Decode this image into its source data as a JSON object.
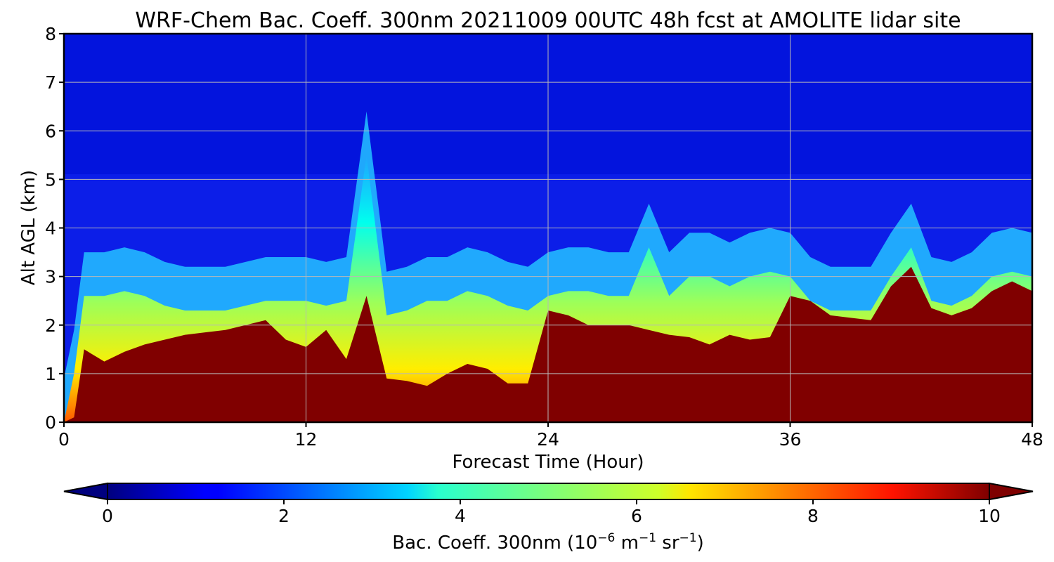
{
  "chart_data": {
    "type": "heatmap",
    "title": "WRF-Chem Bac. Coeff. 300nm  20211009 00UTC 48h fcst at AMOLITE lidar site",
    "xlabel": "Forecast Time (Hour)",
    "ylabel": "Alt AGL (km)",
    "xlim": [
      0,
      48
    ],
    "ylim": [
      0,
      8
    ],
    "xticks": [
      "0",
      "12",
      "24",
      "36",
      "48"
    ],
    "yticks": [
      "0",
      "1",
      "2",
      "3",
      "4",
      "5",
      "6",
      "7",
      "8"
    ],
    "grid": true,
    "colormap": "jet",
    "colorbar": {
      "label_main": "Bac. Coeff. 300nm  (10",
      "label_exp1": "−6",
      "label_mid": " m",
      "label_exp2": "−1",
      "label_mid2": " sr",
      "label_exp3": "−1",
      "label_end": ")",
      "range": [
        0,
        10
      ],
      "ticks": [
        "0",
        "2",
        "4",
        "6",
        "8",
        "10"
      ],
      "extend": "both",
      "placement": "bottom"
    },
    "hours": [
      0,
      0.5,
      1,
      2,
      3,
      4,
      5,
      6,
      7,
      8,
      9,
      10,
      11,
      12,
      13,
      14,
      15,
      16,
      17,
      18,
      19,
      20,
      21,
      22,
      23,
      24,
      25,
      26,
      27,
      28,
      29,
      30,
      31,
      32,
      33,
      34,
      35,
      36,
      37,
      38,
      39,
      40,
      41,
      42,
      43,
      44,
      45,
      46,
      47,
      48
    ],
    "saturation_top_km": [
      0.0,
      0.1,
      1.5,
      1.25,
      1.45,
      1.6,
      1.7,
      1.8,
      1.85,
      1.9,
      2.0,
      2.1,
      1.7,
      1.55,
      1.9,
      1.3,
      2.6,
      0.9,
      0.85,
      0.75,
      1.0,
      1.2,
      1.1,
      0.8,
      0.8,
      2.3,
      2.2,
      2.0,
      2.0,
      2.0,
      1.9,
      1.8,
      1.75,
      1.6,
      1.8,
      1.7,
      1.75,
      2.6,
      2.5,
      2.2,
      2.15,
      2.1,
      2.8,
      3.2,
      2.35,
      2.2,
      2.35,
      2.7,
      2.9,
      2.7
    ],
    "aerosol_top_km": [
      0.0,
      1.0,
      2.6,
      2.6,
      2.7,
      2.6,
      2.4,
      2.3,
      2.3,
      2.3,
      2.4,
      2.5,
      2.5,
      2.5,
      2.4,
      2.5,
      5.5,
      2.2,
      2.3,
      2.5,
      2.5,
      2.7,
      2.6,
      2.4,
      2.3,
      2.6,
      2.7,
      2.7,
      2.6,
      2.6,
      3.6,
      2.6,
      3.0,
      3.0,
      2.8,
      3.0,
      3.1,
      3.0,
      2.5,
      2.3,
      2.3,
      2.3,
      3.0,
      3.6,
      2.5,
      2.4,
      2.6,
      3.0,
      3.1,
      3.0
    ],
    "background_value": 1.3,
    "upper_value": 0.6
  }
}
